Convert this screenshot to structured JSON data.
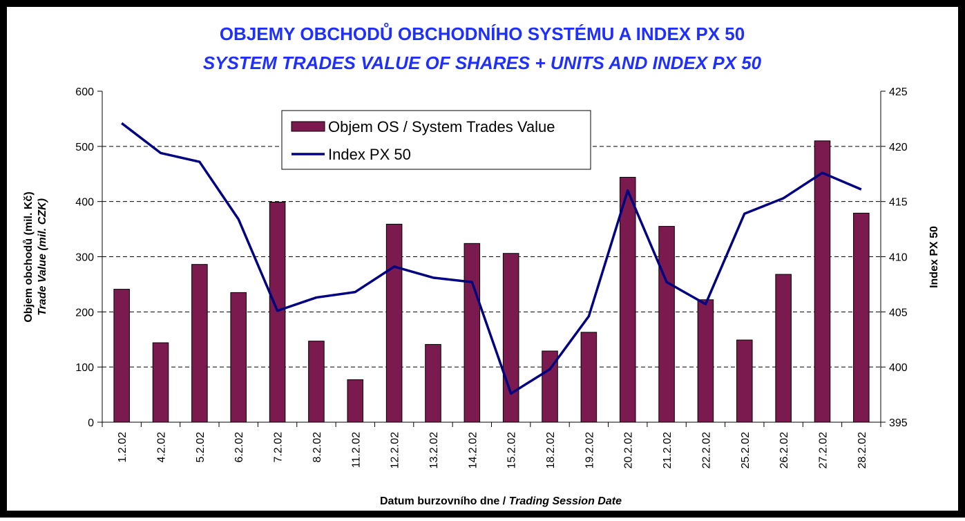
{
  "chart_data": {
    "type": "bar_line",
    "title": "OBJEMY OBCHODŮ OBCHODNÍHO SYSTÉMU A INDEX PX 50",
    "subtitle": "SYSTEM  TRADES VALUE OF SHARES + UNITS AND INDEX PX 50",
    "ylabel": [
      "Objem obchodů (mil. Kč)",
      "Trade Value (mil. CZK)"
    ],
    "y2label": "Index PX 50",
    "xlabel": [
      "Datum burzovního dne / ",
      "Trading Session Date"
    ],
    "categories": [
      "1.2.02",
      "4.2.02",
      "5.2.02",
      "6.2.02",
      "7.2.02",
      "8.2.02",
      "11.2.02",
      "12.2.02",
      "13.2.02",
      "14.2.02",
      "15.2.02",
      "18.2.02",
      "19.2.02",
      "20.2.02",
      "21.2.02",
      "22.2.02",
      "25.2.02",
      "26.2.02",
      "27.2.02",
      "28.2.02"
    ],
    "series": [
      {
        "name": "Objem OS / System Trades Value",
        "color": "#7b1a4f",
        "type": "bar",
        "values": [
          241,
          144,
          286,
          235,
          399,
          147,
          77,
          359,
          141,
          324,
          306,
          129,
          163,
          444,
          355,
          222,
          149,
          268,
          510,
          379
        ]
      },
      {
        "name": "Index PX 50",
        "color": "#000080",
        "type": "line",
        "axis": "y2",
        "values": [
          422.1,
          419.4,
          418.6,
          413.4,
          405.1,
          406.3,
          406.8,
          409.1,
          408.1,
          407.7,
          397.6,
          399.8,
          404.6,
          416.0,
          407.7,
          405.7,
          413.9,
          415.3,
          417.6,
          416.1
        ]
      }
    ],
    "ylim": [
      0,
      600
    ],
    "yticks": [
      0,
      100,
      200,
      300,
      400,
      500,
      600
    ],
    "y2lim": [
      395,
      425
    ],
    "y2ticks": [
      395,
      400,
      405,
      410,
      415,
      420,
      425
    ],
    "grid": true
  }
}
